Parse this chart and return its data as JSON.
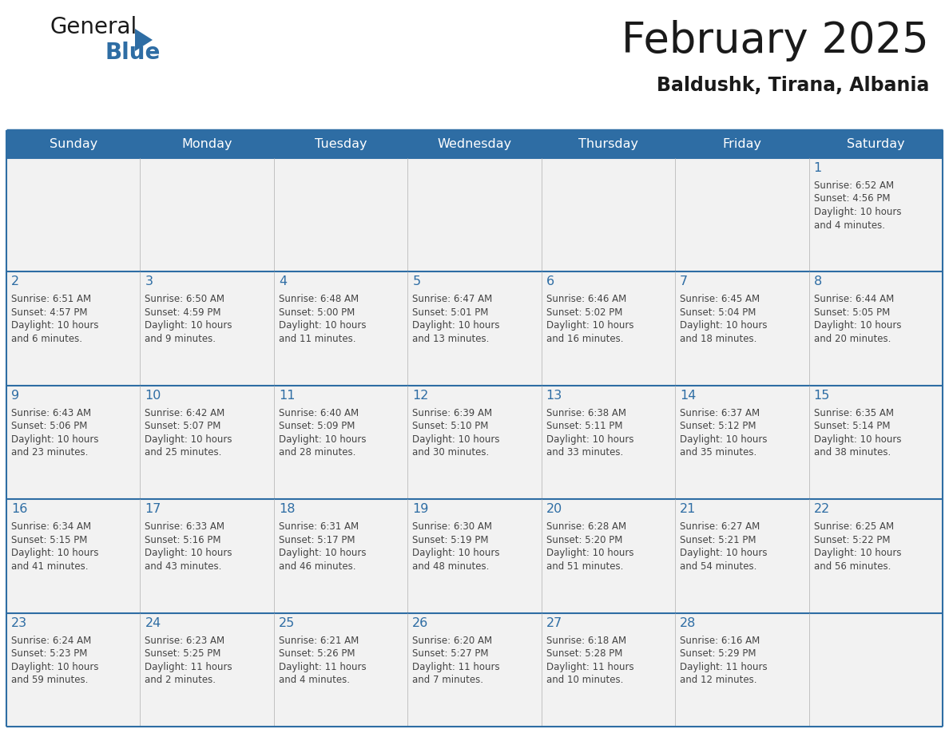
{
  "title": "February 2025",
  "subtitle": "Baldushk, Tirana, Albania",
  "days_of_week": [
    "Sunday",
    "Monday",
    "Tuesday",
    "Wednesday",
    "Thursday",
    "Friday",
    "Saturday"
  ],
  "header_bg_color": "#2E6DA4",
  "header_text_color": "#FFFFFF",
  "cell_bg_color": "#F2F2F2",
  "border_color": "#2E6DA4",
  "day_number_color": "#2E6DA4",
  "cell_text_color": "#444444",
  "title_color": "#1a1a1a",
  "subtitle_color": "#1a1a1a",
  "logo_general_color": "#1a1a1a",
  "logo_blue_color": "#2E6DA4",
  "logo_triangle_color": "#2E6DA4",
  "calendar_data": [
    [
      {
        "day": null,
        "info": ""
      },
      {
        "day": null,
        "info": ""
      },
      {
        "day": null,
        "info": ""
      },
      {
        "day": null,
        "info": ""
      },
      {
        "day": null,
        "info": ""
      },
      {
        "day": null,
        "info": ""
      },
      {
        "day": 1,
        "info": "Sunrise: 6:52 AM\nSunset: 4:56 PM\nDaylight: 10 hours\nand 4 minutes."
      }
    ],
    [
      {
        "day": 2,
        "info": "Sunrise: 6:51 AM\nSunset: 4:57 PM\nDaylight: 10 hours\nand 6 minutes."
      },
      {
        "day": 3,
        "info": "Sunrise: 6:50 AM\nSunset: 4:59 PM\nDaylight: 10 hours\nand 9 minutes."
      },
      {
        "day": 4,
        "info": "Sunrise: 6:48 AM\nSunset: 5:00 PM\nDaylight: 10 hours\nand 11 minutes."
      },
      {
        "day": 5,
        "info": "Sunrise: 6:47 AM\nSunset: 5:01 PM\nDaylight: 10 hours\nand 13 minutes."
      },
      {
        "day": 6,
        "info": "Sunrise: 6:46 AM\nSunset: 5:02 PM\nDaylight: 10 hours\nand 16 minutes."
      },
      {
        "day": 7,
        "info": "Sunrise: 6:45 AM\nSunset: 5:04 PM\nDaylight: 10 hours\nand 18 minutes."
      },
      {
        "day": 8,
        "info": "Sunrise: 6:44 AM\nSunset: 5:05 PM\nDaylight: 10 hours\nand 20 minutes."
      }
    ],
    [
      {
        "day": 9,
        "info": "Sunrise: 6:43 AM\nSunset: 5:06 PM\nDaylight: 10 hours\nand 23 minutes."
      },
      {
        "day": 10,
        "info": "Sunrise: 6:42 AM\nSunset: 5:07 PM\nDaylight: 10 hours\nand 25 minutes."
      },
      {
        "day": 11,
        "info": "Sunrise: 6:40 AM\nSunset: 5:09 PM\nDaylight: 10 hours\nand 28 minutes."
      },
      {
        "day": 12,
        "info": "Sunrise: 6:39 AM\nSunset: 5:10 PM\nDaylight: 10 hours\nand 30 minutes."
      },
      {
        "day": 13,
        "info": "Sunrise: 6:38 AM\nSunset: 5:11 PM\nDaylight: 10 hours\nand 33 minutes."
      },
      {
        "day": 14,
        "info": "Sunrise: 6:37 AM\nSunset: 5:12 PM\nDaylight: 10 hours\nand 35 minutes."
      },
      {
        "day": 15,
        "info": "Sunrise: 6:35 AM\nSunset: 5:14 PM\nDaylight: 10 hours\nand 38 minutes."
      }
    ],
    [
      {
        "day": 16,
        "info": "Sunrise: 6:34 AM\nSunset: 5:15 PM\nDaylight: 10 hours\nand 41 minutes."
      },
      {
        "day": 17,
        "info": "Sunrise: 6:33 AM\nSunset: 5:16 PM\nDaylight: 10 hours\nand 43 minutes."
      },
      {
        "day": 18,
        "info": "Sunrise: 6:31 AM\nSunset: 5:17 PM\nDaylight: 10 hours\nand 46 minutes."
      },
      {
        "day": 19,
        "info": "Sunrise: 6:30 AM\nSunset: 5:19 PM\nDaylight: 10 hours\nand 48 minutes."
      },
      {
        "day": 20,
        "info": "Sunrise: 6:28 AM\nSunset: 5:20 PM\nDaylight: 10 hours\nand 51 minutes."
      },
      {
        "day": 21,
        "info": "Sunrise: 6:27 AM\nSunset: 5:21 PM\nDaylight: 10 hours\nand 54 minutes."
      },
      {
        "day": 22,
        "info": "Sunrise: 6:25 AM\nSunset: 5:22 PM\nDaylight: 10 hours\nand 56 minutes."
      }
    ],
    [
      {
        "day": 23,
        "info": "Sunrise: 6:24 AM\nSunset: 5:23 PM\nDaylight: 10 hours\nand 59 minutes."
      },
      {
        "day": 24,
        "info": "Sunrise: 6:23 AM\nSunset: 5:25 PM\nDaylight: 11 hours\nand 2 minutes."
      },
      {
        "day": 25,
        "info": "Sunrise: 6:21 AM\nSunset: 5:26 PM\nDaylight: 11 hours\nand 4 minutes."
      },
      {
        "day": 26,
        "info": "Sunrise: 6:20 AM\nSunset: 5:27 PM\nDaylight: 11 hours\nand 7 minutes."
      },
      {
        "day": 27,
        "info": "Sunrise: 6:18 AM\nSunset: 5:28 PM\nDaylight: 11 hours\nand 10 minutes."
      },
      {
        "day": 28,
        "info": "Sunrise: 6:16 AM\nSunset: 5:29 PM\nDaylight: 11 hours\nand 12 minutes."
      },
      {
        "day": null,
        "info": ""
      }
    ]
  ]
}
